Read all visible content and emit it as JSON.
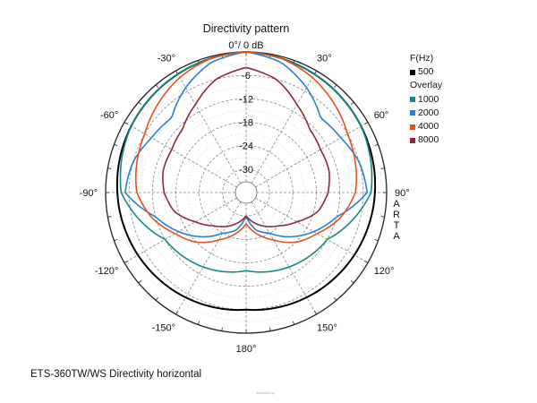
{
  "chart_data": {
    "type": "polar",
    "title": "Directivity pattern",
    "radial_unit_label": "0°/ 0 dB",
    "radial_ticks": [
      "-6",
      "-12",
      "-18",
      "-24",
      "-30"
    ],
    "radial_range_db": [
      -36,
      0
    ],
    "angle_tick_labels": [
      {
        "deg": 0,
        "label": ""
      },
      {
        "deg": 30,
        "label": "30°"
      },
      {
        "deg": 60,
        "label": "60°"
      },
      {
        "deg": 90,
        "label": "90°"
      },
      {
        "deg": 120,
        "label": "120°"
      },
      {
        "deg": 150,
        "label": "150°"
      },
      {
        "deg": 180,
        "label": "180°"
      },
      {
        "deg": -150,
        "label": "-150°"
      },
      {
        "deg": -120,
        "label": "-120°"
      },
      {
        "deg": -90,
        "label": "-90°"
      },
      {
        "deg": -60,
        "label": "-60°"
      },
      {
        "deg": -30,
        "label": "-30°"
      }
    ],
    "angles": [
      0,
      15,
      30,
      45,
      60,
      75,
      90,
      105,
      120,
      135,
      150,
      165,
      180
    ],
    "series": [
      {
        "name": "500",
        "color": "#000000",
        "values": [
          0,
          -0.5,
          -1,
          -1.5,
          -2,
          -2.5,
          -3,
          -3.5,
          -4,
          -4.5,
          -5,
          -5.5,
          -6
        ]
      },
      {
        "name": "1000",
        "color": "#138a87",
        "values": [
          0,
          -0.5,
          -1,
          -1.5,
          -2,
          -3,
          -4,
          -8,
          -12,
          -13,
          -14,
          -15,
          -16
        ]
      },
      {
        "name": "2000",
        "color": "#2a7fd4",
        "values": [
          0,
          -1.5,
          -5,
          -9,
          -8,
          -6,
          -5,
          -12,
          -16,
          -20,
          -24,
          -26,
          -30
        ]
      },
      {
        "name": "4000",
        "color": "#e2531b",
        "values": [
          0,
          -0.5,
          -2,
          -4,
          -6,
          -7,
          -8,
          -11,
          -15,
          -18,
          -22,
          -25,
          -28
        ]
      },
      {
        "name": "8000",
        "color": "#8b2a3c",
        "values": [
          -4,
          -6,
          -10,
          -13,
          -14,
          -14,
          -15,
          -17,
          -21,
          -24,
          -26,
          -28,
          -30
        ]
      }
    ]
  },
  "legend": {
    "header_freq": "F(Hz)",
    "header_overlay": "Overlay"
  },
  "side_label": "A R T A",
  "caption": "ETS-360TW/WS  Directivity horizontal",
  "watermark": "www.tltk3.pl"
}
